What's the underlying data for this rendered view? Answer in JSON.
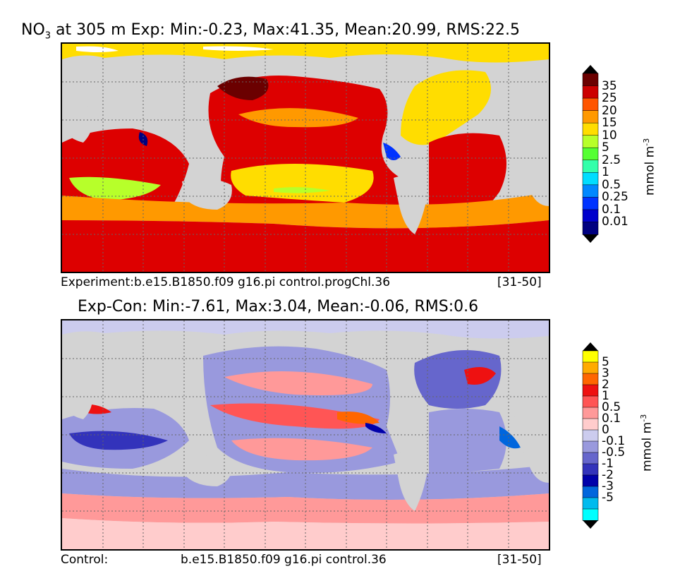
{
  "top_panel": {
    "title_var": "NO",
    "title_sub": "3",
    "title_rest": " at 305 m Exp: Min:-0.23, Max:41.35, Mean:20.99, RMS:22.5",
    "caption_left": "Experiment:b.e15.B1850.f09 g16.pi control.progChl.36",
    "caption_right": "[31-50]",
    "colorbar": {
      "unit": "mmol m",
      "unit_sup": "-3",
      "labels": [
        "35",
        "25",
        "20",
        "15",
        "10",
        "5",
        "2.5",
        "1",
        "0.5",
        "0.25",
        "0.1",
        "0.01"
      ],
      "colors": [
        "#6b0000",
        "#cc0000",
        "#ff5500",
        "#ff9900",
        "#ffdd00",
        "#b7ff2a",
        "#55ff33",
        "#33ffaa",
        "#00ddff",
        "#0088ff",
        "#0033ff",
        "#0000cc",
        "#000080"
      ],
      "over_color": "#000000",
      "under_color": "#000000"
    }
  },
  "bottom_panel": {
    "title": "Exp-Con: Min:-7.61, Max:3.04, Mean:-0.06, RMS:0.6",
    "caption_left": "Control:",
    "caption_center": "b.e15.B1850.f09 g16.pi control.36",
    "caption_right": "[31-50]",
    "colorbar": {
      "unit": "mmol m",
      "unit_sup": "-3",
      "labels": [
        "5",
        "3",
        "2",
        "1",
        "0.5",
        "0.1",
        "0",
        "-0.1",
        "-0.5",
        "-1",
        "-2",
        "-3",
        "-5"
      ],
      "colors": [
        "#ffff00",
        "#ffaa00",
        "#ff6600",
        "#ee1111",
        "#ff5555",
        "#ff9999",
        "#ffcccc",
        "#ccccee",
        "#9999dd",
        "#6666cc",
        "#3333bb",
        "#0000aa",
        "#0066dd",
        "#00bbee",
        "#00ffff"
      ],
      "over_color": "#000000",
      "under_color": "#000000"
    }
  },
  "map_colors": {
    "land": "#d3d3d3",
    "missing": "#ffffff"
  }
}
